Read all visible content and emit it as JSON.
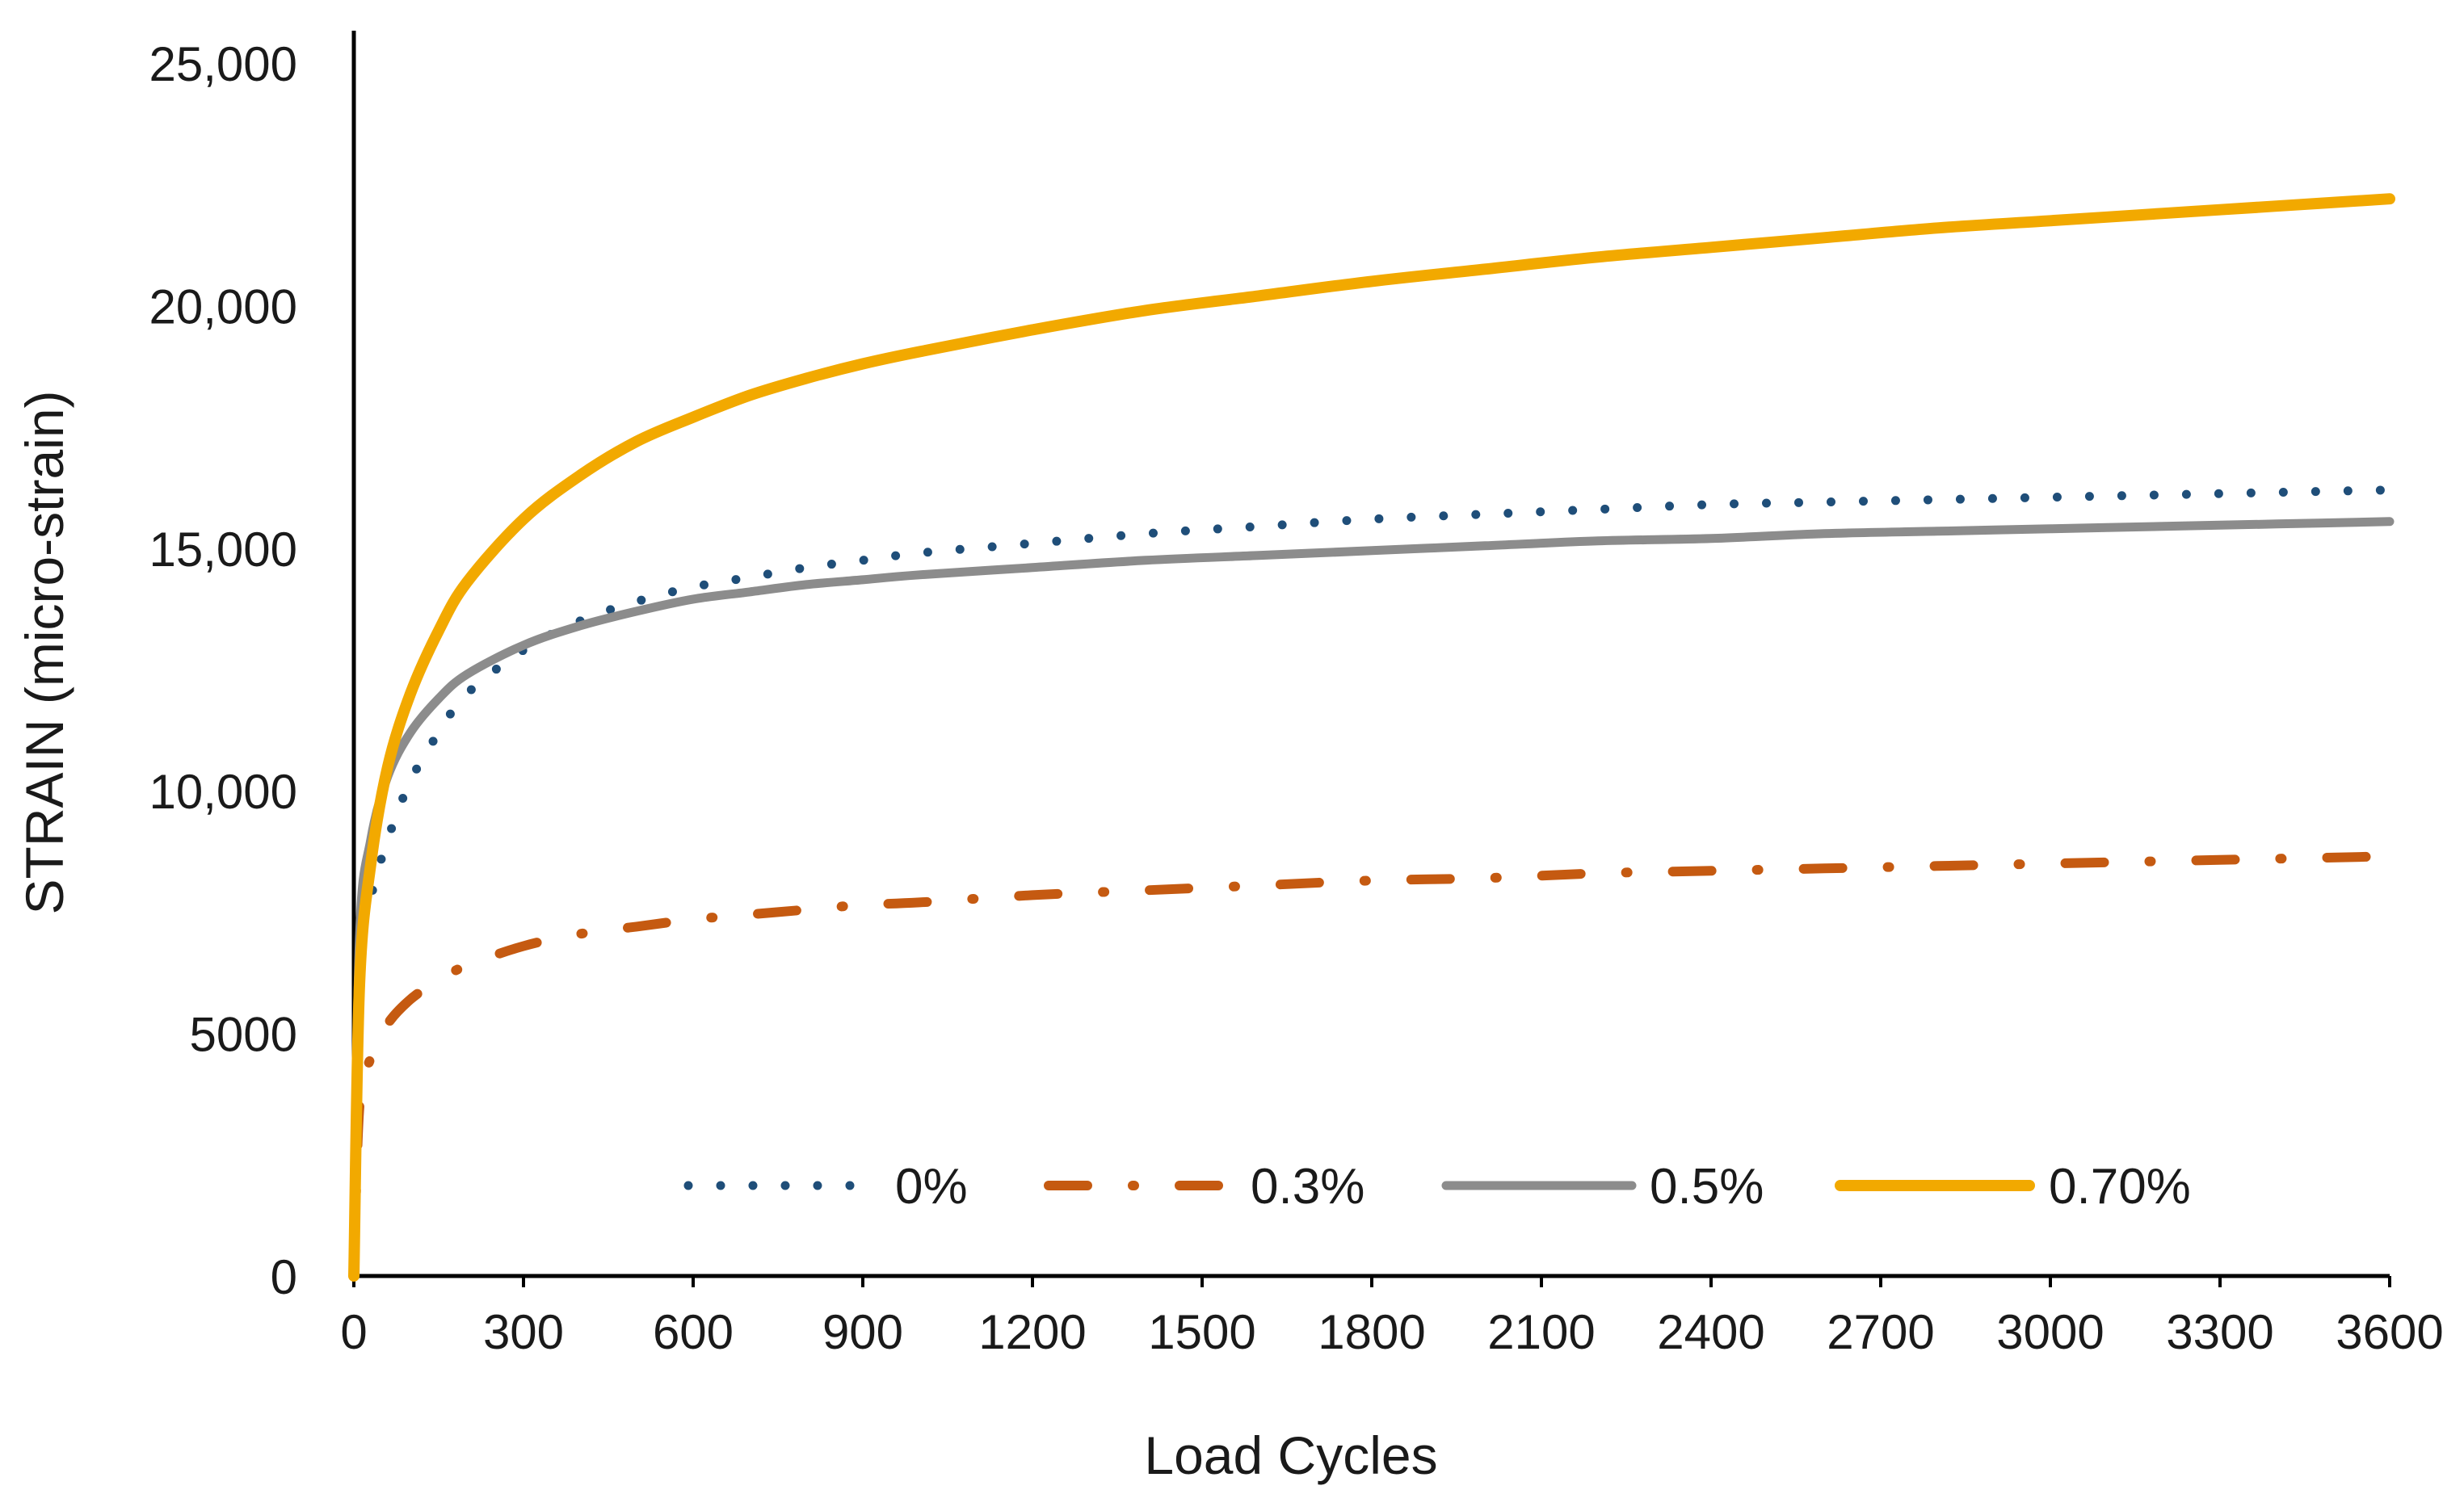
{
  "chart_data": {
    "type": "line",
    "title": "",
    "xlabel": "Load Cycles",
    "ylabel": "STRAIN (micro-strain)",
    "xlim": [
      0,
      3600
    ],
    "ylim": [
      0,
      25000
    ],
    "x_ticks": [
      0,
      300,
      600,
      900,
      1200,
      1500,
      1800,
      2100,
      2400,
      2700,
      3000,
      3300,
      3600
    ],
    "x_tick_labels": [
      "0",
      "300",
      "600",
      "900",
      "1200",
      "1500",
      "1800",
      "2100",
      "2400",
      "2700",
      "3000",
      "3300",
      "3600"
    ],
    "y_ticks": [
      0,
      5000,
      10000,
      15000,
      20000,
      25000
    ],
    "y_tick_labels": [
      "0",
      "5000",
      "10,000",
      "15,000",
      "20,000",
      "25,000"
    ],
    "grid": false,
    "legend_position": "bottom-inside",
    "x": [
      0,
      10,
      30,
      60,
      100,
      150,
      200,
      300,
      400,
      500,
      600,
      700,
      800,
      900,
      1000,
      1200,
      1400,
      1600,
      1800,
      2000,
      2200,
      2400,
      2600,
      2800,
      3000,
      3200,
      3400,
      3600
    ],
    "series": [
      {
        "name": "0%",
        "style": "dotted",
        "color": "#1f4e79",
        "values": [
          0,
          6500,
          7800,
          9000,
          10200,
          11200,
          12000,
          12900,
          13500,
          13900,
          14200,
          14400,
          14600,
          14750,
          14900,
          15100,
          15300,
          15450,
          15600,
          15700,
          15800,
          15900,
          15950,
          16000,
          16050,
          16100,
          16150,
          16200
        ]
      },
      {
        "name": "0.3%",
        "style": "dash-dot",
        "color": "#c55a11",
        "values": [
          0,
          3500,
          4500,
          5200,
          5700,
          6100,
          6400,
          6800,
          7050,
          7200,
          7350,
          7450,
          7550,
          7650,
          7700,
          7850,
          7950,
          8050,
          8150,
          8200,
          8300,
          8350,
          8400,
          8450,
          8500,
          8550,
          8600,
          8650
        ]
      },
      {
        "name": "0.5%",
        "style": "solid",
        "color": "#8c8c8c",
        "values": [
          0,
          7000,
          9000,
          10300,
          11200,
          11900,
          12400,
          13000,
          13400,
          13700,
          13950,
          14100,
          14250,
          14350,
          14450,
          14600,
          14750,
          14850,
          14950,
          15050,
          15150,
          15200,
          15300,
          15350,
          15400,
          15450,
          15500,
          15550
        ]
      },
      {
        "name": "0.70%",
        "style": "solid",
        "color": "#f2a900",
        "values": [
          0,
          6000,
          8500,
          10500,
          12000,
          13300,
          14300,
          15600,
          16500,
          17200,
          17700,
          18150,
          18500,
          18800,
          19050,
          19500,
          19900,
          20200,
          20500,
          20750,
          21000,
          21200,
          21400,
          21600,
          21750,
          21900,
          22050,
          22200
        ]
      }
    ]
  }
}
